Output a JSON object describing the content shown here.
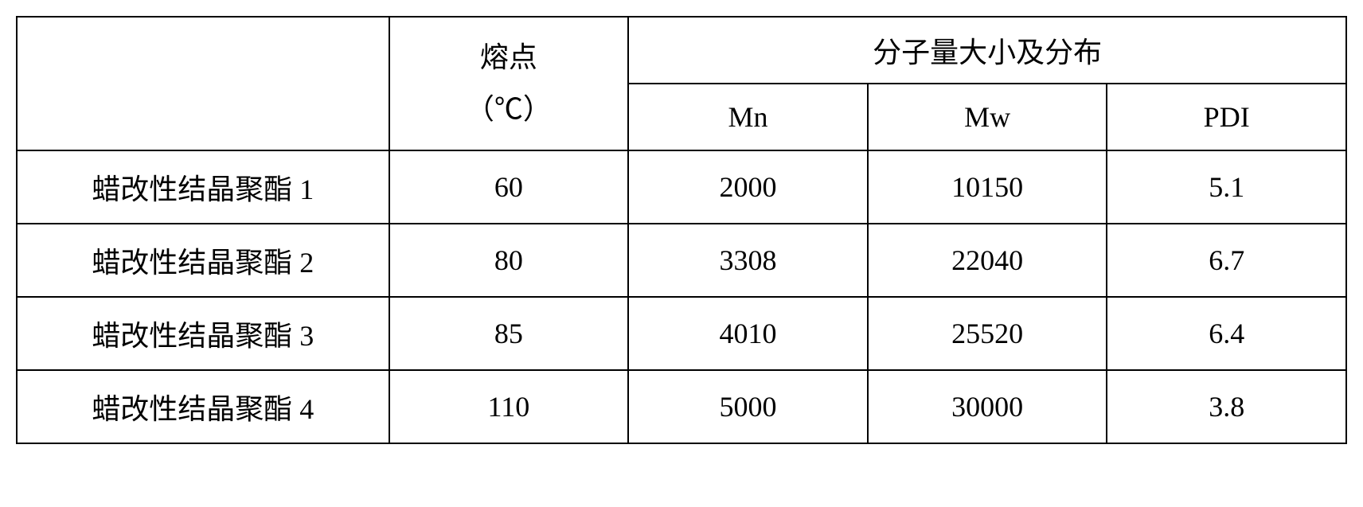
{
  "table": {
    "type": "table",
    "columns": [
      {
        "key": "label",
        "header": ""
      },
      {
        "key": "melting_point",
        "header": "熔点",
        "unit": "（℃）"
      },
      {
        "key": "molecular_group",
        "header": "分子量大小及分布"
      },
      {
        "key": "mn",
        "header": "Mn"
      },
      {
        "key": "mw",
        "header": "Mw"
      },
      {
        "key": "pdi",
        "header": "PDI"
      }
    ],
    "rows": [
      {
        "label": "蜡改性结晶聚酯 1",
        "melting_point": "60",
        "mn": "2000",
        "mw": "10150",
        "pdi": "5.1"
      },
      {
        "label": "蜡改性结晶聚酯 2",
        "melting_point": "80",
        "mn": "3308",
        "mw": "22040",
        "pdi": "6.7"
      },
      {
        "label": "蜡改性结晶聚酯 3",
        "melting_point": "85",
        "mn": "4010",
        "mw": "25520",
        "pdi": "6.4"
      },
      {
        "label": "蜡改性结晶聚酯 4",
        "melting_point": "110",
        "mn": "5000",
        "mw": "30000",
        "pdi": "3.8"
      }
    ],
    "styling": {
      "border_color": "#000000",
      "border_width": 2,
      "background_color": "#ffffff",
      "text_color": "#000000",
      "font_size": 36,
      "font_family": "SimSun"
    }
  }
}
